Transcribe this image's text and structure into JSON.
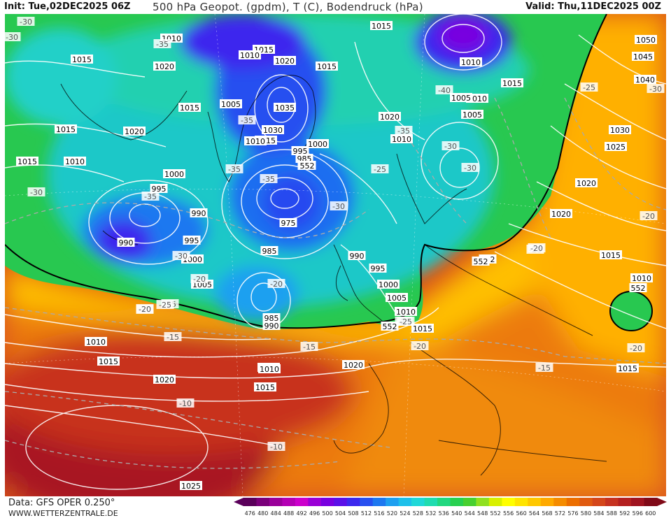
{
  "header": {
    "init": "Init: Tue,02DEC2025 06Z",
    "title": "500 hPa Geopot. (gpdm), T (C), Bodendruck (hPa)",
    "valid": "Valid: Thu,11DEC2025 00Z"
  },
  "footer": {
    "data_source": "Data: GFS OPER 0.250°",
    "website": "WWW.WETTERZENTRALE.DE"
  },
  "colorscale": {
    "labels": [
      "476",
      "480",
      "484",
      "488",
      "492",
      "496",
      "500",
      "504",
      "508",
      "512",
      "516",
      "520",
      "524",
      "528",
      "532",
      "536",
      "540",
      "544",
      "548",
      "552",
      "556",
      "560",
      "564",
      "568",
      "572",
      "576",
      "580",
      "584",
      "588",
      "592",
      "596",
      "600"
    ],
    "colors": [
      "#5a005a",
      "#7a007a",
      "#9a009a",
      "#b400b4",
      "#cc00cc",
      "#9a00d6",
      "#7800e0",
      "#5a10e8",
      "#3c28ee",
      "#2850f0",
      "#1e78f0",
      "#1ea0f0",
      "#1ec0ea",
      "#20d8d8",
      "#20dcb0",
      "#22d880",
      "#28d050",
      "#48d030",
      "#90e020",
      "#d8f000",
      "#ffff00",
      "#ffe400",
      "#ffc800",
      "#ffaa00",
      "#f58c00",
      "#ec6e00",
      "#e05a10",
      "#d4461a",
      "#c63220",
      "#b42020",
      "#a01420",
      "#800a18"
    ]
  },
  "map": {
    "pressure_labels": [
      {
        "t": "1010"
      },
      {
        "t": "1015"
      },
      {
        "t": "1015"
      },
      {
        "t": "1020"
      },
      {
        "t": "1015"
      },
      {
        "t": "1015"
      },
      {
        "t": "1020"
      },
      {
        "t": "1015"
      },
      {
        "t": "1010"
      },
      {
        "t": "1010"
      },
      {
        "t": "1015"
      },
      {
        "t": "1020"
      },
      {
        "t": "1015"
      },
      {
        "t": "1005"
      },
      {
        "t": "1035"
      },
      {
        "t": "1030"
      },
      {
        "t": "1015"
      },
      {
        "t": "1010"
      },
      {
        "t": "995"
      },
      {
        "t": "985"
      },
      {
        "t": "980"
      },
      {
        "t": "1000"
      },
      {
        "t": "1000"
      },
      {
        "t": "995"
      },
      {
        "t": "990"
      },
      {
        "t": "990"
      },
      {
        "t": "995"
      },
      {
        "t": "1000"
      },
      {
        "t": "975"
      },
      {
        "t": "985"
      },
      {
        "t": "990"
      },
      {
        "t": "995"
      },
      {
        "t": "1000"
      },
      {
        "t": "1005"
      },
      {
        "t": "1010"
      },
      {
        "t": "1005"
      },
      {
        "t": "985"
      },
      {
        "t": "990"
      },
      {
        "t": "1020"
      },
      {
        "t": "1010"
      },
      {
        "t": "1005"
      },
      {
        "t": "1010"
      },
      {
        "t": "1010"
      },
      {
        "t": "1005"
      },
      {
        "t": "1015"
      },
      {
        "t": "1010"
      },
      {
        "t": "1050"
      },
      {
        "t": "1045"
      },
      {
        "t": "1040"
      },
      {
        "t": "1030"
      },
      {
        "t": "1025"
      },
      {
        "t": "1020"
      },
      {
        "t": "1020"
      },
      {
        "t": "1015"
      },
      {
        "t": "1010"
      },
      {
        "t": "1015"
      },
      {
        "t": "1010"
      },
      {
        "t": "1015"
      },
      {
        "t": "1020"
      },
      {
        "t": "1010"
      },
      {
        "t": "1015"
      },
      {
        "t": "1020"
      },
      {
        "t": "1025"
      },
      {
        "t": "1015"
      }
    ],
    "temp_labels": [
      {
        "t": "-30"
      },
      {
        "t": "-30"
      },
      {
        "t": "-35"
      },
      {
        "t": "-35"
      },
      {
        "t": "-35"
      },
      {
        "t": "-40"
      },
      {
        "t": "-35"
      },
      {
        "t": "-30"
      },
      {
        "t": "-30"
      },
      {
        "t": "-25"
      },
      {
        "t": "-25"
      },
      {
        "t": "-30"
      },
      {
        "t": "-35"
      },
      {
        "t": "-30"
      },
      {
        "t": "-35"
      },
      {
        "t": "-30"
      },
      {
        "t": "-20"
      },
      {
        "t": "-25"
      },
      {
        "t": "-20"
      },
      {
        "t": "-25"
      },
      {
        "t": "-20"
      },
      {
        "t": "-25"
      },
      {
        "t": "-20"
      },
      {
        "t": "-15"
      },
      {
        "t": "-15"
      },
      {
        "t": "-20"
      },
      {
        "t": "-10"
      },
      {
        "t": "-10"
      },
      {
        "t": "-15"
      },
      {
        "t": "-20"
      },
      {
        "t": "-20"
      },
      {
        "t": "-25"
      },
      {
        "t": "-20"
      },
      {
        "t": "-30"
      },
      {
        "t": "-20"
      }
    ],
    "geopot_labels": [
      {
        "t": "552"
      },
      {
        "t": "552"
      },
      {
        "t": "552"
      },
      {
        "t": "552"
      },
      {
        "t": "552"
      }
    ]
  }
}
